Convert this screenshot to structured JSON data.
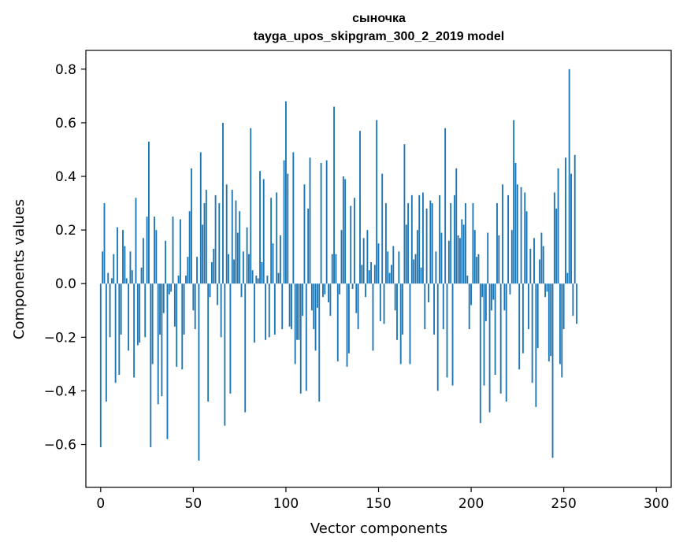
{
  "chart_data": {
    "type": "bar",
    "title": "сыночка",
    "subtitle": "tayga_upos_skipgram_300_2_2019 model",
    "xlabel": "Vector components",
    "ylabel": "Components values",
    "xlim": [
      -8,
      308
    ],
    "ylim": [
      -0.76,
      0.87
    ],
    "xticks": [
      0,
      50,
      100,
      150,
      200,
      250,
      300
    ],
    "xtick_labels": [
      "0",
      "50",
      "100",
      "150",
      "200",
      "250",
      "300"
    ],
    "yticks": [
      -0.6,
      -0.4,
      -0.2,
      0.0,
      0.2,
      0.4,
      0.6,
      0.8
    ],
    "ytick_labels": [
      "−0.6",
      "−0.4",
      "−0.2",
      "0.0",
      "0.2",
      "0.4",
      "0.6",
      "0.8"
    ],
    "bar_color": "#1f77b4",
    "grid": false,
    "series": [
      {
        "name": "сыночка",
        "values": [
          -0.61,
          0.12,
          0.3,
          -0.44,
          0.04,
          -0.2,
          0.02,
          0.11,
          -0.37,
          0.21,
          -0.34,
          -0.19,
          0.2,
          0.14,
          0.02,
          -0.25,
          0.12,
          0.05,
          -0.35,
          0.32,
          -0.23,
          -0.22,
          0.06,
          0.17,
          -0.2,
          0.25,
          0.53,
          -0.61,
          -0.3,
          0.25,
          0.2,
          -0.45,
          -0.19,
          -0.42,
          -0.11,
          0.16,
          -0.58,
          -0.04,
          -0.03,
          0.25,
          -0.16,
          -0.31,
          0.03,
          0.24,
          -0.32,
          -0.19,
          0.03,
          0.1,
          0.27,
          0.43,
          -0.1,
          -0.17,
          0.1,
          -0.66,
          0.49,
          0.22,
          0.3,
          0.35,
          -0.44,
          -0.05,
          0.08,
          0.13,
          0.33,
          -0.08,
          0.3,
          -0.2,
          0.6,
          -0.53,
          0.37,
          0.11,
          -0.41,
          0.35,
          0.09,
          0.31,
          0.19,
          0.27,
          -0.05,
          0.12,
          -0.48,
          0.21,
          0.11,
          0.58,
          0.05,
          -0.22,
          0.03,
          0.02,
          0.42,
          0.08,
          0.39,
          -0.21,
          0.03,
          -0.2,
          0.32,
          0.15,
          -0.19,
          0.34,
          0.04,
          0.18,
          -0.17,
          0.46,
          0.68,
          0.41,
          -0.16,
          -0.17,
          0.49,
          -0.3,
          -0.21,
          -0.21,
          -0.41,
          -0.12,
          0.37,
          -0.4,
          0.28,
          0.47,
          -0.1,
          -0.17,
          -0.25,
          -0.09,
          -0.44,
          0.45,
          -0.05,
          -0.04,
          0.46,
          -0.07,
          -0.12,
          0.11,
          0.66,
          0.11,
          -0.29,
          -0.04,
          0.2,
          0.4,
          0.39,
          -0.31,
          -0.26,
          0.29,
          -0.02,
          0.32,
          -0.11,
          -0.17,
          0.57,
          0.07,
          0.17,
          -0.05,
          0.2,
          0.05,
          0.08,
          -0.25,
          0.07,
          0.61,
          0.15,
          -0.14,
          0.41,
          -0.15,
          0.3,
          0.12,
          0.04,
          0.07,
          0.14,
          -0.1,
          -0.21,
          0.12,
          -0.3,
          -0.19,
          0.52,
          0.22,
          0.3,
          -0.3,
          0.33,
          0.09,
          0.11,
          0.2,
          0.33,
          0.06,
          0.34,
          -0.17,
          0.28,
          -0.07,
          0.31,
          0.3,
          -0.19,
          0.12,
          -0.4,
          0.33,
          0.19,
          -0.17,
          0.58,
          -0.35,
          0.16,
          0.3,
          -0.38,
          0.33,
          0.43,
          0.18,
          0.17,
          0.24,
          0.22,
          0.3,
          0.03,
          -0.17,
          -0.08,
          0.3,
          0.2,
          0.1,
          0.11,
          -0.52,
          -0.05,
          -0.38,
          -0.14,
          0.19,
          -0.48,
          -0.1,
          -0.06,
          -0.34,
          0.3,
          0.18,
          -0.41,
          0.37,
          -0.1,
          -0.44,
          0.33,
          -0.04,
          0.2,
          0.61,
          0.45,
          0.37,
          -0.32,
          0.36,
          -0.26,
          0.34,
          0.27,
          -0.17,
          0.13,
          -0.37,
          0.17,
          -0.46,
          -0.24,
          0.09,
          0.19,
          0.14,
          -0.05,
          -0.03,
          -0.29,
          -0.27,
          -0.65,
          0.34,
          0.28,
          0.43,
          -0.3,
          -0.35,
          -0.17,
          0.47,
          0.04,
          0.8,
          0.41,
          -0.12,
          0.48,
          -0.15
        ]
      }
    ]
  }
}
